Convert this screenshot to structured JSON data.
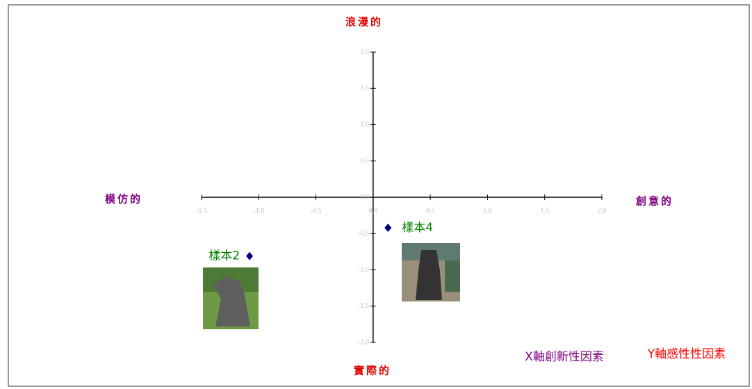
{
  "chart_data": {
    "type": "scatter",
    "color": "#000080",
    "x": [
      -1.08,
      0.13
    ],
    "values": [
      -0.81,
      -0.42
    ],
    "point_labels": [
      "樣本2",
      "樣本4"
    ],
    "xlim": [
      -1.5,
      2.0
    ],
    "ylim": [
      -2.0,
      2.0
    ],
    "xticks": [
      {
        "value": -1.5,
        "label": "-1.5"
      },
      {
        "value": -1.0,
        "label": "-1.0"
      },
      {
        "value": -0.5,
        "label": "-0.5"
      },
      {
        "value": 0,
        "label": "0.0"
      },
      {
        "value": 0.5,
        "label": "0.5"
      },
      {
        "value": 1.0,
        "label": "1.0"
      },
      {
        "value": 1.5,
        "label": "1.5"
      },
      {
        "value": 2.0,
        "label": "2.0"
      }
    ],
    "yticks": [
      {
        "value": 2.0,
        "label": "2.0"
      },
      {
        "value": 1.5,
        "label": "1.5"
      },
      {
        "value": 1.0,
        "label": "1.0"
      },
      {
        "value": 0.5,
        "label": "0.5"
      },
      {
        "value": 0,
        "label": "0.0"
      },
      {
        "value": -0.5,
        "label": "-0.5"
      },
      {
        "value": -1.0,
        "label": "-1.0"
      },
      {
        "value": -1.5,
        "label": "-1.5"
      },
      {
        "value": -2.0,
        "label": "-2.0"
      }
    ],
    "axis_ends": {
      "top": "浪漫的",
      "bottom": "實際的",
      "left": "模仿的",
      "right": "創意的"
    },
    "x_axis_title": "X軸創新性因素",
    "y_axis_title": "Y軸感性性因素"
  }
}
